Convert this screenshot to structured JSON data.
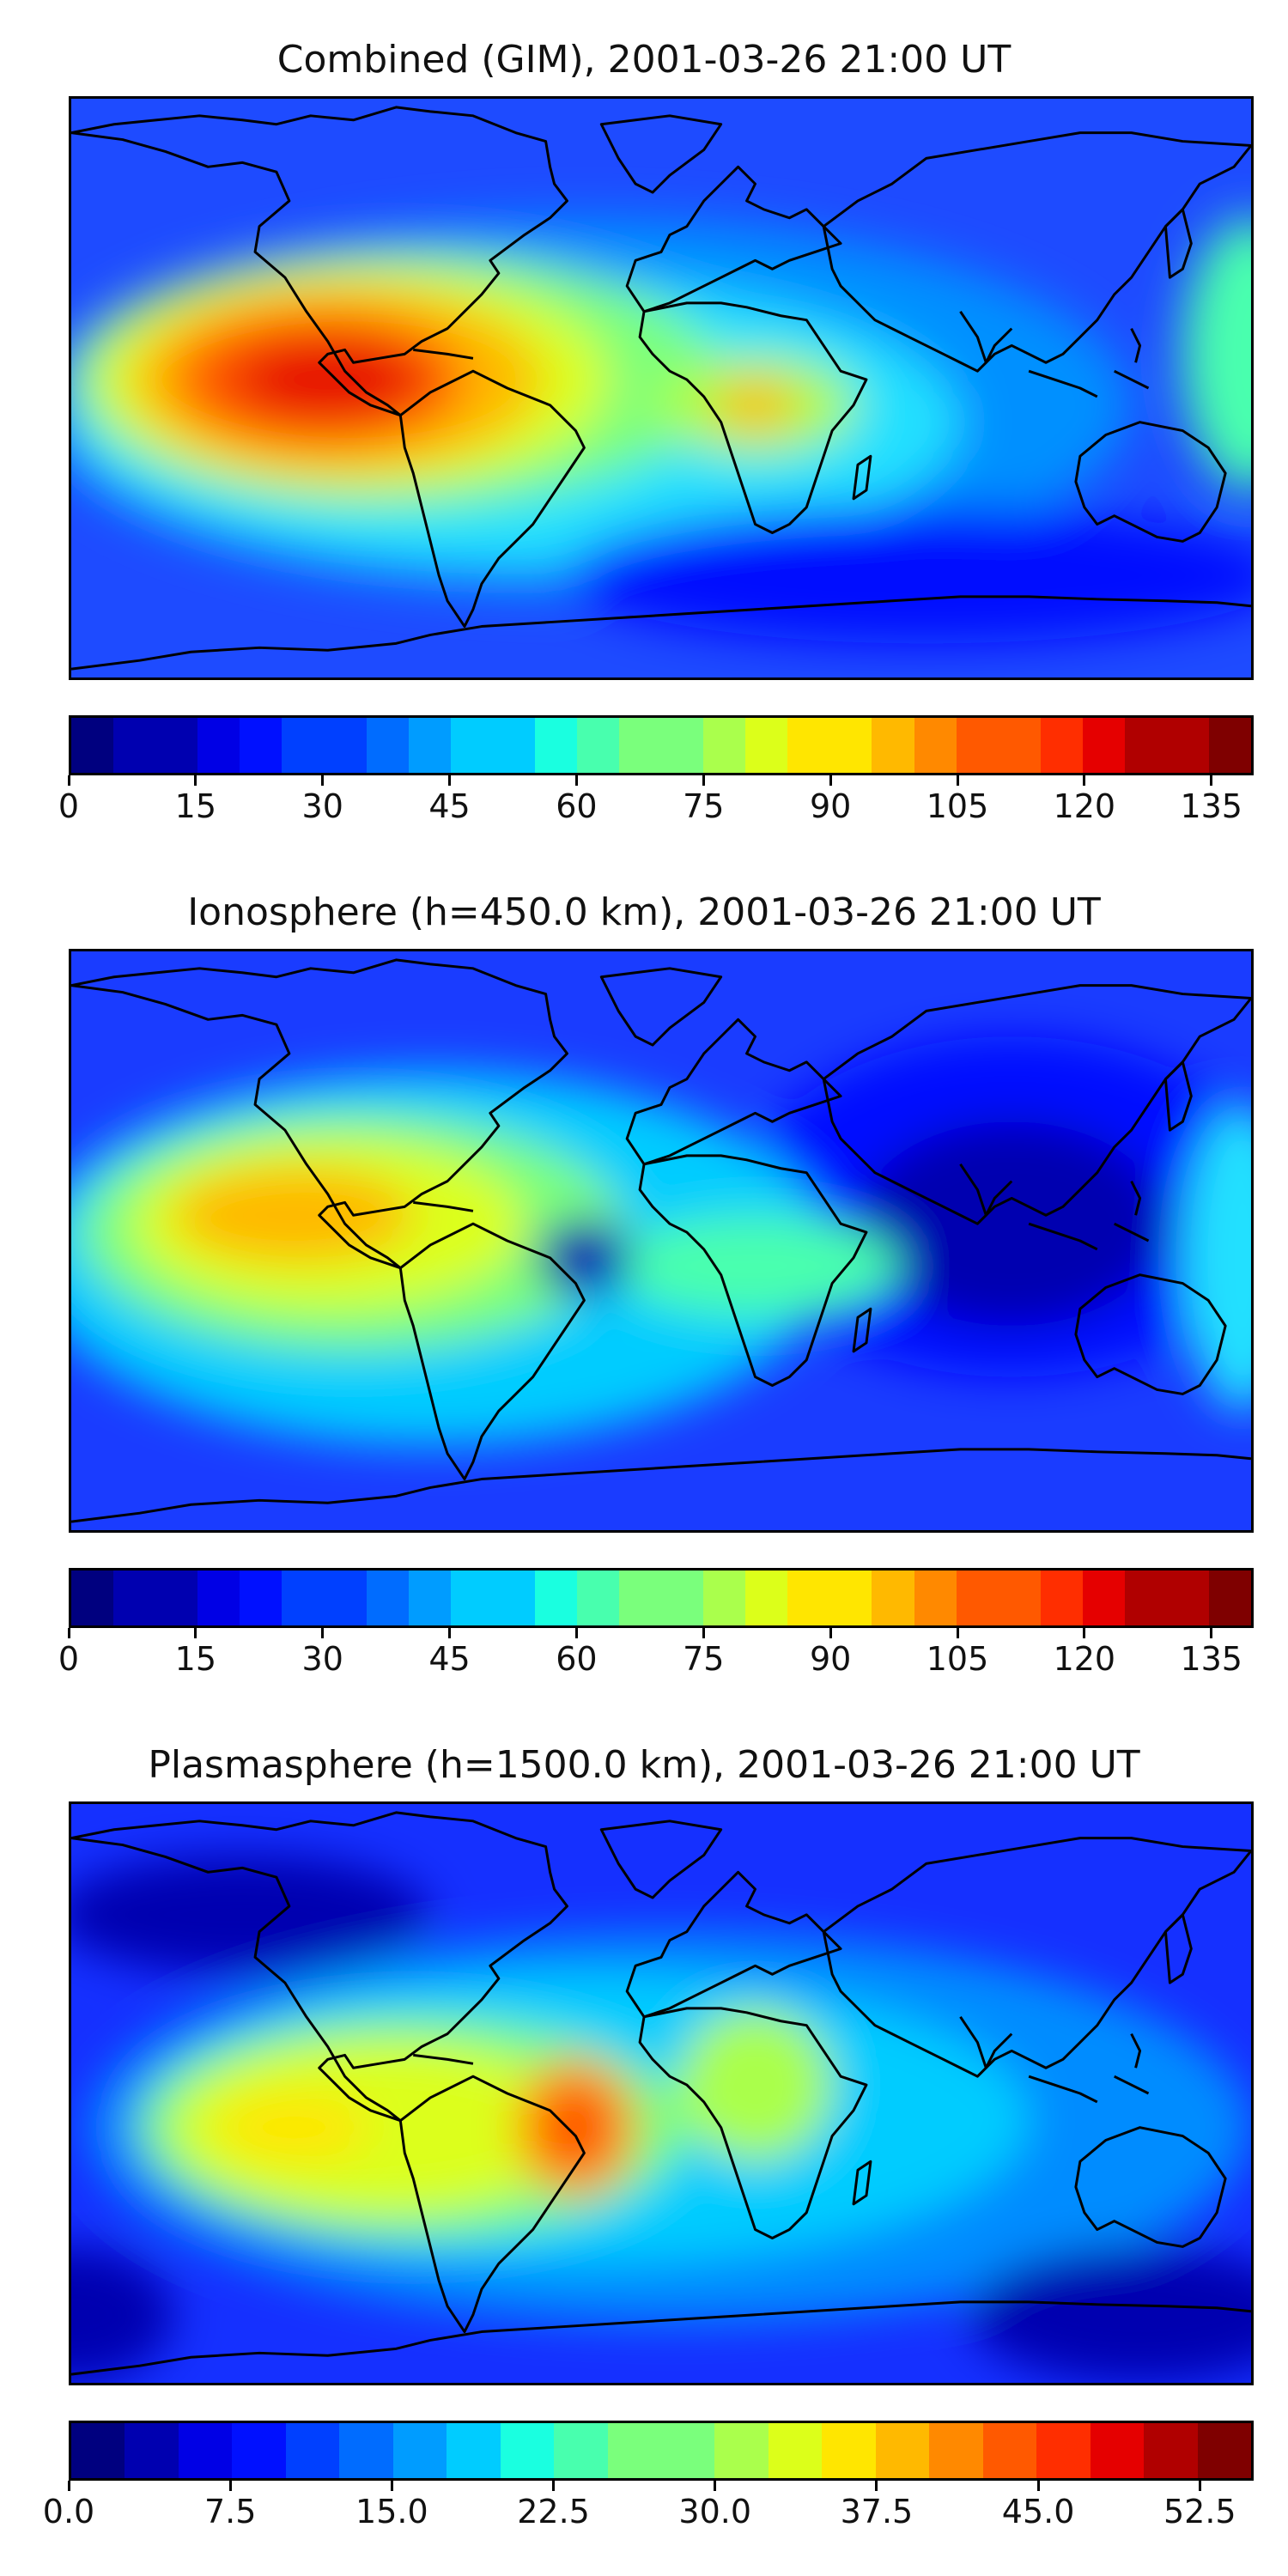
{
  "colormap": [
    "#00007f",
    "#0000b0",
    "#0000e5",
    "#0010ff",
    "#0040ff",
    "#006cff",
    "#009cff",
    "#00ccff",
    "#1affe0",
    "#48ffae",
    "#7aff7c",
    "#aaff4c",
    "#dcff1a",
    "#ffe600",
    "#ffb900",
    "#ff8900",
    "#ff5900",
    "#ff2e00",
    "#e50000",
    "#b00000",
    "#7f0000"
  ],
  "ocean_color": "#1530ff",
  "coastline_color": "#000000",
  "panels": [
    {
      "title": "Combined (GIM), 2001-03-26 21:00 UT",
      "colorbar": {
        "min": 0,
        "max": 140,
        "levels": 28,
        "ticks": [
          "0",
          "15",
          "30",
          "45",
          "60",
          "75",
          "90",
          "105",
          "120",
          "135"
        ],
        "tick_values": [
          0,
          15,
          30,
          45,
          60,
          75,
          90,
          105,
          120,
          135
        ]
      }
    },
    {
      "title": "Ionosphere  (h=450.0 km), 2001-03-26 21:00 UT",
      "colorbar": {
        "min": 0,
        "max": 140,
        "levels": 28,
        "ticks": [
          "0",
          "15",
          "30",
          "45",
          "60",
          "75",
          "90",
          "105",
          "120",
          "135"
        ],
        "tick_values": [
          0,
          15,
          30,
          45,
          60,
          75,
          90,
          105,
          120,
          135
        ]
      }
    },
    {
      "title": "Plasmasphere (h=1500.0 km), 2001-03-26 21:00 UT",
      "colorbar": {
        "min": 0,
        "max": 55,
        "levels": 22,
        "ticks": [
          "0.0",
          "7.5",
          "15.0",
          "22.5",
          "30.0",
          "37.5",
          "45.0",
          "52.5"
        ],
        "tick_values": [
          0,
          7.5,
          15,
          22.5,
          30,
          37.5,
          45,
          52.5
        ]
      }
    }
  ]
}
